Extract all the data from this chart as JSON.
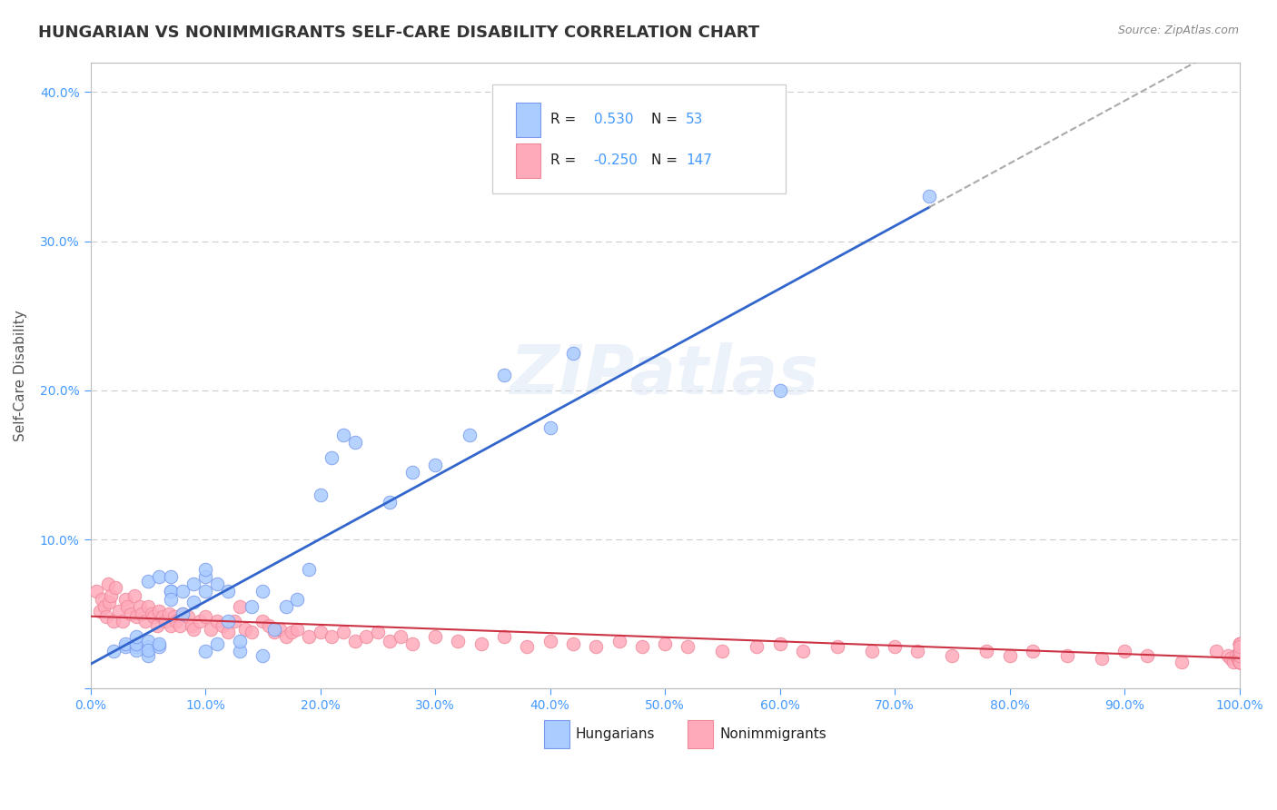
{
  "title": "HUNGARIAN VS NONIMMIGRANTS SELF-CARE DISABILITY CORRELATION CHART",
  "source_text": "Source: ZipAtlas.com",
  "ylabel": "Self-Care Disability",
  "xlim": [
    0.0,
    1.0
  ],
  "ylim": [
    0.0,
    0.42
  ],
  "x_ticks": [
    0.0,
    0.1,
    0.2,
    0.3,
    0.4,
    0.5,
    0.6,
    0.7,
    0.8,
    0.9,
    1.0
  ],
  "x_tick_labels": [
    "0.0%",
    "10.0%",
    "20.0%",
    "30.0%",
    "40.0%",
    "50.0%",
    "60.0%",
    "70.0%",
    "80.0%",
    "90.0%",
    "100.0%"
  ],
  "y_ticks": [
    0.0,
    0.1,
    0.2,
    0.3,
    0.4
  ],
  "y_tick_labels": [
    "",
    "10.0%",
    "20.0%",
    "30.0%",
    "40.0%"
  ],
  "background_color": "#ffffff",
  "plot_bg_color": "#ffffff",
  "grid_color": "#cccccc",
  "title_color": "#333333",
  "axis_label_color": "#555555",
  "tick_color": "#4499ff",
  "hungarian_color": "#aaccff",
  "hungarian_edge_color": "#7799ee",
  "nonimmigrant_color": "#ffaabb",
  "nonimmigrant_edge_color": "#ee8899",
  "hungarian_line_color": "#3366cc",
  "nonimmigrant_line_color": "#cc3344",
  "trend_extend_color": "#aaaaaa",
  "r_hungarian": 0.53,
  "n_hungarian": 53,
  "r_nonimmigrant": -0.25,
  "n_nonimmigrant": 147,
  "hungarian_scatter_x": [
    0.02,
    0.03,
    0.03,
    0.04,
    0.04,
    0.04,
    0.04,
    0.05,
    0.05,
    0.05,
    0.05,
    0.05,
    0.06,
    0.06,
    0.06,
    0.07,
    0.07,
    0.07,
    0.07,
    0.08,
    0.08,
    0.09,
    0.09,
    0.1,
    0.1,
    0.1,
    0.1,
    0.11,
    0.11,
    0.12,
    0.12,
    0.13,
    0.13,
    0.14,
    0.15,
    0.15,
    0.16,
    0.17,
    0.18,
    0.19,
    0.2,
    0.21,
    0.22,
    0.23,
    0.26,
    0.28,
    0.3,
    0.33,
    0.36,
    0.4,
    0.42,
    0.6,
    0.73
  ],
  "hungarian_scatter_y": [
    0.025,
    0.028,
    0.03,
    0.028,
    0.026,
    0.03,
    0.035,
    0.028,
    0.032,
    0.022,
    0.026,
    0.072,
    0.028,
    0.03,
    0.075,
    0.065,
    0.065,
    0.075,
    0.06,
    0.05,
    0.065,
    0.058,
    0.07,
    0.025,
    0.065,
    0.075,
    0.08,
    0.07,
    0.03,
    0.065,
    0.045,
    0.025,
    0.032,
    0.055,
    0.022,
    0.065,
    0.04,
    0.055,
    0.06,
    0.08,
    0.13,
    0.155,
    0.17,
    0.165,
    0.125,
    0.145,
    0.15,
    0.17,
    0.21,
    0.175,
    0.225,
    0.2,
    0.33
  ],
  "nonimmigrant_scatter_x": [
    0.005,
    0.008,
    0.01,
    0.012,
    0.014,
    0.015,
    0.016,
    0.018,
    0.02,
    0.022,
    0.025,
    0.028,
    0.03,
    0.032,
    0.035,
    0.038,
    0.04,
    0.043,
    0.045,
    0.048,
    0.05,
    0.053,
    0.055,
    0.058,
    0.06,
    0.063,
    0.065,
    0.068,
    0.07,
    0.073,
    0.075,
    0.078,
    0.08,
    0.085,
    0.088,
    0.09,
    0.095,
    0.1,
    0.105,
    0.11,
    0.115,
    0.12,
    0.125,
    0.13,
    0.135,
    0.14,
    0.15,
    0.155,
    0.16,
    0.165,
    0.17,
    0.175,
    0.18,
    0.19,
    0.2,
    0.21,
    0.22,
    0.23,
    0.24,
    0.25,
    0.26,
    0.27,
    0.28,
    0.3,
    0.32,
    0.34,
    0.36,
    0.38,
    0.4,
    0.42,
    0.44,
    0.46,
    0.48,
    0.5,
    0.52,
    0.55,
    0.58,
    0.6,
    0.62,
    0.65,
    0.68,
    0.7,
    0.72,
    0.75,
    0.78,
    0.8,
    0.82,
    0.85,
    0.88,
    0.9,
    0.92,
    0.95,
    0.98,
    0.99,
    0.992,
    0.995,
    0.997,
    0.999,
    1.0,
    1.0,
    1.0,
    1.0,
    1.0,
    1.0,
    1.0,
    1.0,
    1.0,
    1.0,
    1.0,
    1.0,
    1.0,
    1.0,
    1.0,
    1.0,
    1.0,
    1.0,
    1.0,
    1.0,
    1.0,
    1.0,
    1.0,
    1.0,
    1.0,
    1.0,
    1.0,
    1.0,
    1.0,
    1.0,
    1.0,
    1.0,
    1.0,
    1.0,
    1.0,
    1.0,
    1.0,
    1.0,
    1.0,
    1.0,
    1.0,
    1.0,
    1.0,
    1.0,
    1.0,
    1.0,
    1.0
  ],
  "nonimmigrant_scatter_y": [
    0.065,
    0.052,
    0.06,
    0.055,
    0.048,
    0.07,
    0.058,
    0.062,
    0.045,
    0.068,
    0.052,
    0.045,
    0.06,
    0.055,
    0.05,
    0.062,
    0.048,
    0.055,
    0.05,
    0.045,
    0.055,
    0.05,
    0.048,
    0.042,
    0.052,
    0.048,
    0.045,
    0.05,
    0.042,
    0.048,
    0.045,
    0.042,
    0.05,
    0.048,
    0.042,
    0.04,
    0.045,
    0.048,
    0.04,
    0.045,
    0.042,
    0.038,
    0.045,
    0.055,
    0.04,
    0.038,
    0.045,
    0.042,
    0.038,
    0.04,
    0.035,
    0.038,
    0.04,
    0.035,
    0.038,
    0.035,
    0.038,
    0.032,
    0.035,
    0.038,
    0.032,
    0.035,
    0.03,
    0.035,
    0.032,
    0.03,
    0.035,
    0.028,
    0.032,
    0.03,
    0.028,
    0.032,
    0.028,
    0.03,
    0.028,
    0.025,
    0.028,
    0.03,
    0.025,
    0.028,
    0.025,
    0.028,
    0.025,
    0.022,
    0.025,
    0.022,
    0.025,
    0.022,
    0.02,
    0.025,
    0.022,
    0.018,
    0.025,
    0.022,
    0.02,
    0.018,
    0.022,
    0.02,
    0.018,
    0.022,
    0.025,
    0.018,
    0.022,
    0.02,
    0.018,
    0.022,
    0.025,
    0.02,
    0.018,
    0.022,
    0.025,
    0.018,
    0.02,
    0.022,
    0.025,
    0.018,
    0.025,
    0.022,
    0.02,
    0.018,
    0.022,
    0.025,
    0.018,
    0.02,
    0.018,
    0.022,
    0.025,
    0.03,
    0.018,
    0.022,
    0.025,
    0.02,
    0.018,
    0.022,
    0.025,
    0.03,
    0.018,
    0.022,
    0.025,
    0.03,
    0.018,
    0.022,
    0.025,
    0.03,
    0.028
  ]
}
